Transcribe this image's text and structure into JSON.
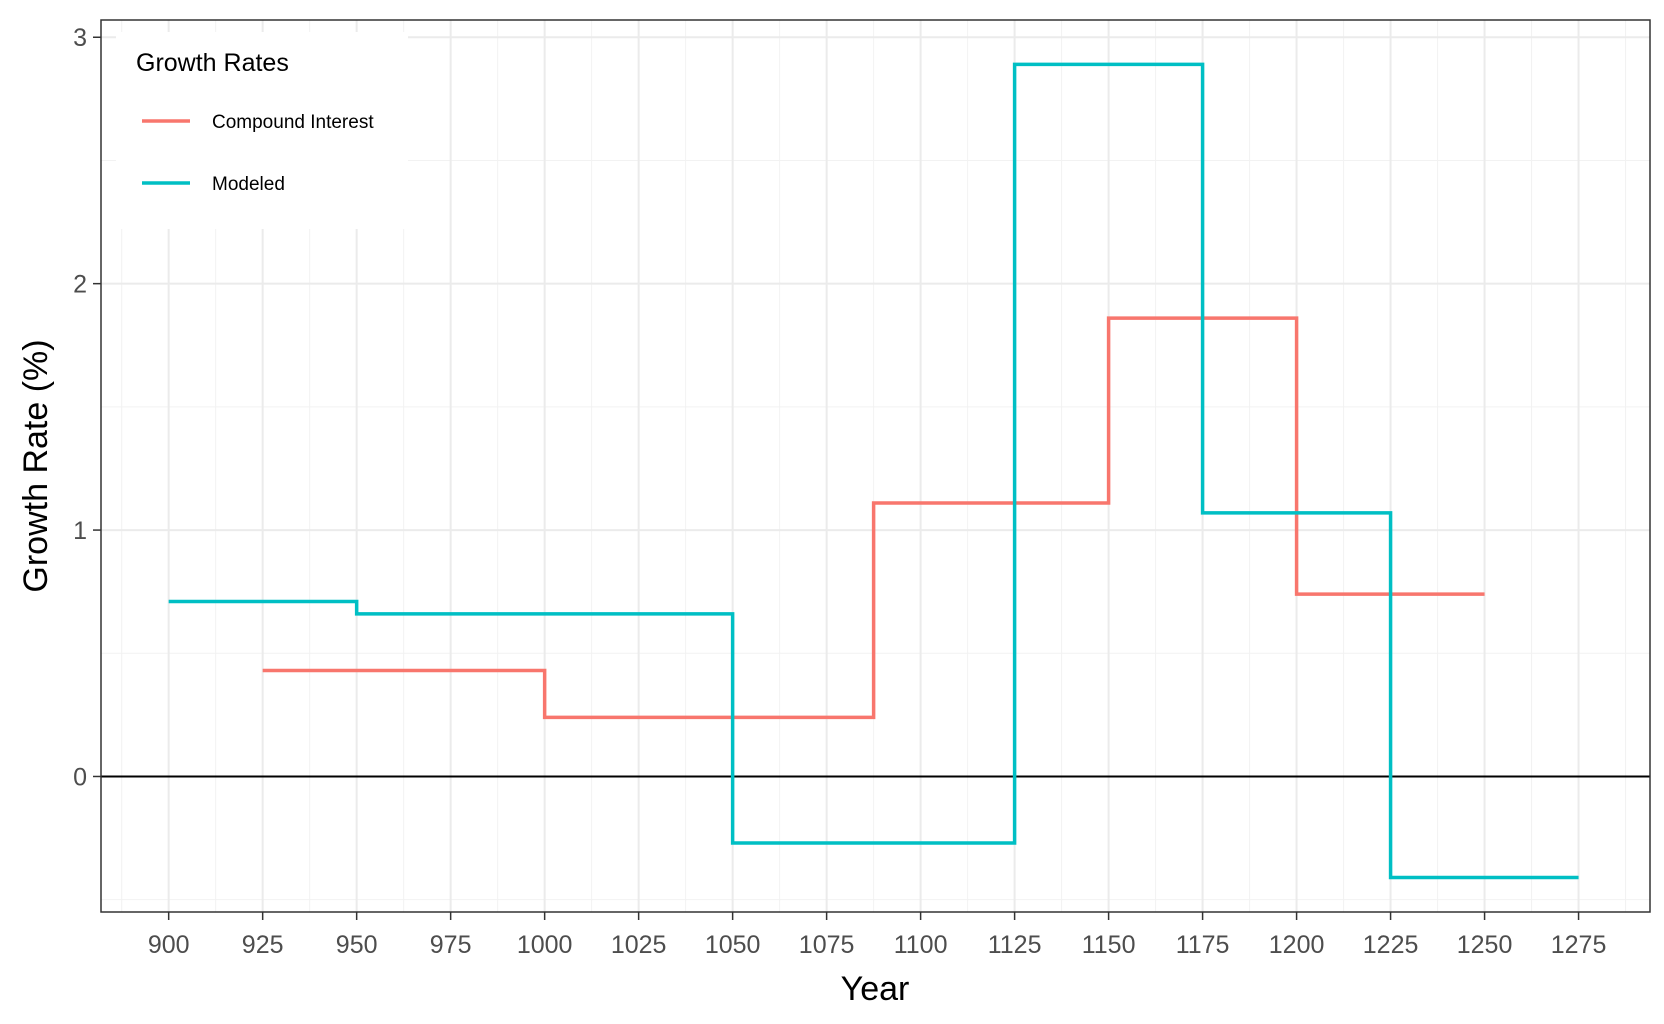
{
  "chart_data": {
    "type": "line",
    "step": true,
    "xlabel": "Year",
    "ylabel": "Growth Rate (%)",
    "xlim": [
      882,
      1294
    ],
    "ylim": [
      -0.55,
      3.07
    ],
    "x_ticks": [
      900,
      925,
      950,
      975,
      1000,
      1025,
      1050,
      1075,
      1100,
      1125,
      1150,
      1175,
      1200,
      1225,
      1250,
      1275
    ],
    "x_minor_step": 12.5,
    "y_ticks": [
      0,
      1,
      2,
      3
    ],
    "y_minor_step": 0.5,
    "grid": true,
    "zero_line": true,
    "legend": {
      "title": "Growth Rates",
      "position": "top-left"
    },
    "series": [
      {
        "name": "Compound Interest",
        "color": "#F8766D",
        "segments": [
          {
            "x0": 925,
            "x1": 1000,
            "y": 0.43
          },
          {
            "x0": 1000,
            "x1": 1087.5,
            "y": 0.24
          },
          {
            "x0": 1087.5,
            "x1": 1150,
            "y": 1.11
          },
          {
            "x0": 1150,
            "x1": 1200,
            "y": 1.86
          },
          {
            "x0": 1200,
            "x1": 1250,
            "y": 0.74
          }
        ]
      },
      {
        "name": "Modeled",
        "color": "#00BFC4",
        "segments": [
          {
            "x0": 900,
            "x1": 950,
            "y": 0.71
          },
          {
            "x0": 950,
            "x1": 1050,
            "y": 0.66
          },
          {
            "x0": 1050,
            "x1": 1125,
            "y": -0.27
          },
          {
            "x0": 1125,
            "x1": 1175,
            "y": 2.89
          },
          {
            "x0": 1175,
            "x1": 1225,
            "y": 1.07
          },
          {
            "x0": 1225,
            "x1": 1275,
            "y": -0.41
          }
        ]
      }
    ]
  }
}
